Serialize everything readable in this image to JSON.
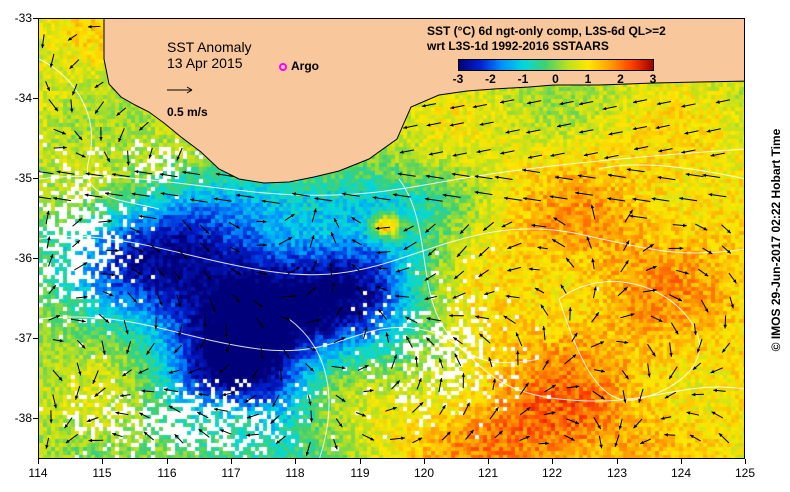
{
  "title": {
    "name": "SST Anomaly",
    "date": "13 Apr 2015"
  },
  "product": {
    "line1": "SST (°C) 6d ngt-only comp, L3S-6d QL>=2",
    "line2": "wrt L3S-1d 1992-2016 SSTAARS"
  },
  "colorbar": {
    "min": -3,
    "max": 3,
    "ticks": [
      "-3",
      "-2",
      "-1",
      "0",
      "1",
      "2",
      "3"
    ],
    "colors": [
      "#00007a",
      "#0020d0",
      "#0090ff",
      "#00d8e0",
      "#40d070",
      "#b8e020",
      "#ffe800",
      "#ffa000",
      "#ff4000",
      "#a00000"
    ]
  },
  "legend": {
    "argo_label": "Argo",
    "argo_color": "#ff00ff",
    "vector_label": "0.5 m/s"
  },
  "axes": {
    "x_ticks": [
      "114",
      "115",
      "116",
      "117",
      "118",
      "119",
      "120",
      "121",
      "122",
      "123",
      "124",
      "125"
    ],
    "y_ticks": [
      "-33",
      "-34",
      "-35",
      "-36",
      "-37",
      "-38"
    ],
    "lon_range": [
      114,
      125
    ],
    "lat_range": [
      -33,
      -38.5
    ]
  },
  "colors": {
    "land": "#f8c79b",
    "no_data": "#ffffff",
    "contour": "#ffffff",
    "vector": "#000000"
  },
  "credit": "© IMOS 29-Jun-2017 02:22 Hobart Time"
}
